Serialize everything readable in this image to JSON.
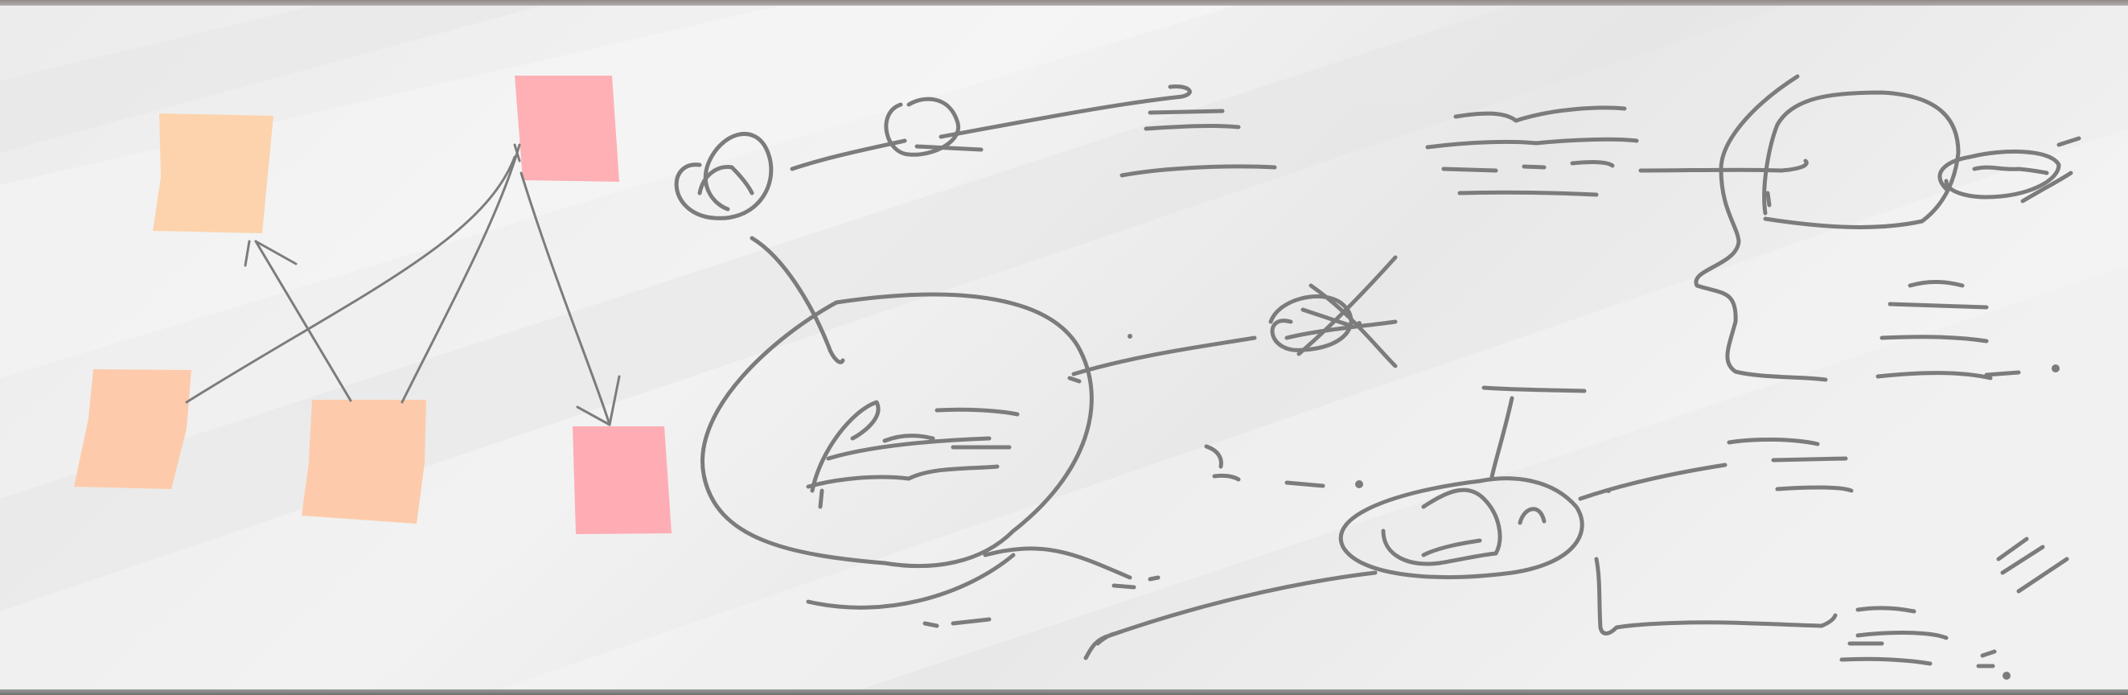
{
  "scene": {
    "subject": "whiteboard",
    "board_color": "#efefef",
    "marker_color": "#7c7c7c",
    "sticky_notes": [
      {
        "id": "note-peach-top-left",
        "color": "#fdd3ad"
      },
      {
        "id": "note-pink-top-center",
        "color": "#feb0b4"
      },
      {
        "id": "note-peach-bottom-left",
        "color": "#fdcbab"
      },
      {
        "id": "note-peach-bottom-center",
        "color": "#fdcbab"
      },
      {
        "id": "note-pink-bottom-right",
        "color": "#feadb4"
      }
    ]
  }
}
